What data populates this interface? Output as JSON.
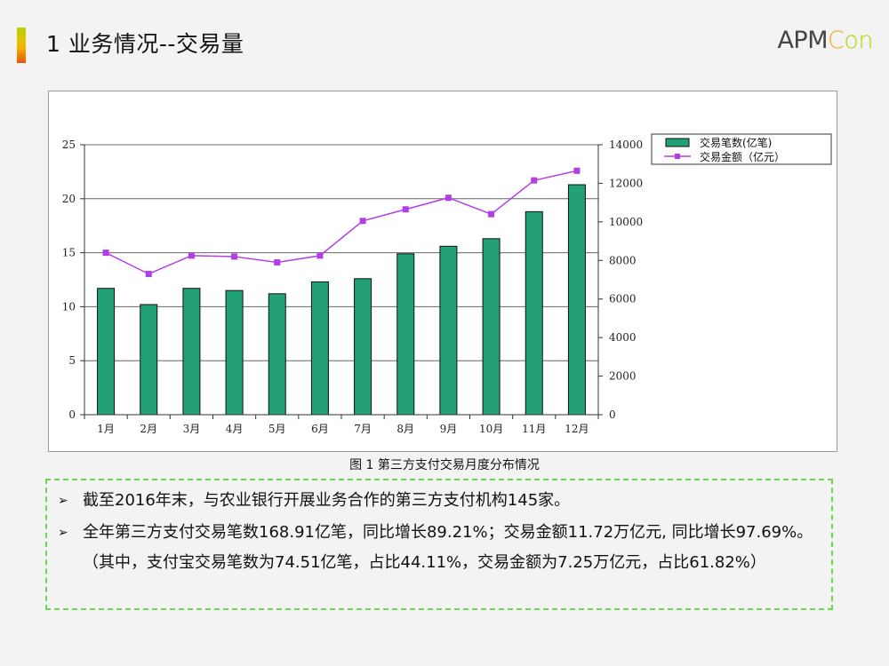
{
  "slide": {
    "title": "1 业务情况--交易量",
    "logo_main": "APM",
    "logo_suffix_1": "C",
    "logo_suffix_2": "on"
  },
  "caption": "图 1 第三方支付交易月度分布情况",
  "notes": [
    "截至2016年末，与农业银行开展业务合作的第三方支付机构145家。",
    "全年第三方支付交易笔数168.91亿笔，同比增长89.21%；交易金额11.72万亿元, 同比增长97.69%。（其中，支付宝交易笔数为74.51亿笔，占比44.11%，交易金额为7.25万亿元，占比61.82%）"
  ],
  "colors": {
    "bar": "#22a077",
    "line": "#b43ee6",
    "accent_top": "#b8d300",
    "accent_bottom": "#e8530e",
    "notes_border": "#66dd44"
  },
  "chart_data": {
    "type": "bar",
    "categories": [
      "1月",
      "2月",
      "3月",
      "4月",
      "5月",
      "6月",
      "7月",
      "8月",
      "9月",
      "10月",
      "11月",
      "12月"
    ],
    "series": [
      {
        "name": "交易笔数(亿笔)",
        "type": "bar",
        "axis": "left",
        "values": [
          11.7,
          10.2,
          11.7,
          11.5,
          11.2,
          12.3,
          12.6,
          14.9,
          15.6,
          16.3,
          18.8,
          21.3
        ]
      },
      {
        "name": "交易金额（亿元）",
        "type": "line",
        "axis": "right",
        "marker": "square",
        "values": [
          8400,
          7300,
          8250,
          8200,
          7900,
          8250,
          10050,
          10650,
          11250,
          10400,
          12150,
          12650
        ]
      }
    ],
    "y_left": {
      "ticks": [
        0,
        5,
        10,
        15,
        20,
        25
      ],
      "ylim": [
        0,
        25
      ]
    },
    "y_right": {
      "ticks": [
        0,
        2000,
        4000,
        6000,
        8000,
        10000,
        12000,
        14000
      ],
      "ylim": [
        0,
        14000
      ]
    },
    "grid": true,
    "legend": "top-right"
  }
}
